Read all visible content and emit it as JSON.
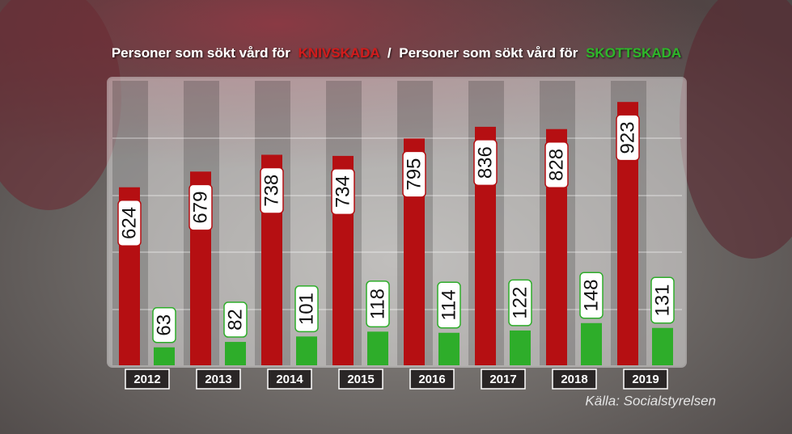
{
  "chart_data": {
    "type": "bar",
    "legend_prefix": "Personer som sökt vård för",
    "legend_separator": "/",
    "categories": [
      "2012",
      "2013",
      "2014",
      "2015",
      "2016",
      "2017",
      "2018",
      "2019"
    ],
    "series": [
      {
        "name": "KNIVSKADA",
        "color": "#b50f12",
        "values": [
          624,
          679,
          738,
          734,
          795,
          836,
          828,
          923
        ]
      },
      {
        "name": "SKOTTSKADA",
        "color": "#2ead2a",
        "values": [
          63,
          82,
          101,
          118,
          114,
          122,
          148,
          131
        ]
      }
    ],
    "source": "Källa: Socialstyrelsen"
  }
}
